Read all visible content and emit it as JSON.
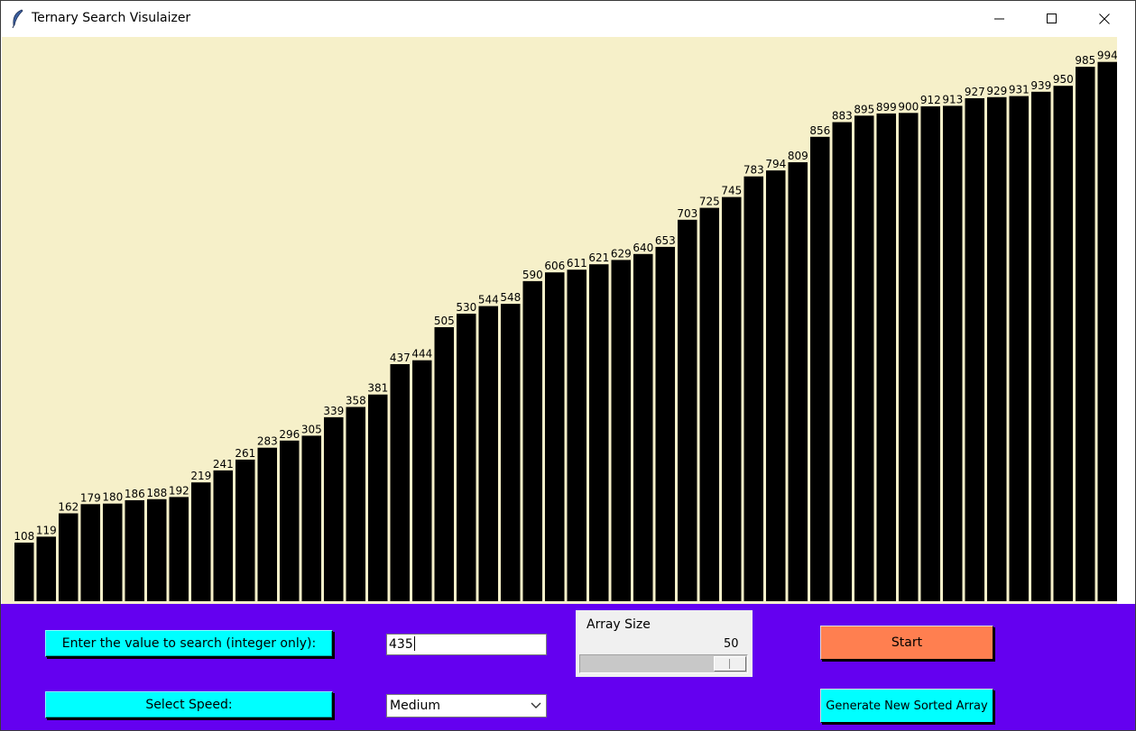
{
  "window": {
    "title": "Ternary Search Visulaizer"
  },
  "chart_data": {
    "type": "bar",
    "values": [
      108,
      119,
      162,
      179,
      180,
      186,
      188,
      192,
      219,
      241,
      261,
      283,
      296,
      305,
      339,
      358,
      381,
      437,
      444,
      505,
      530,
      544,
      548,
      590,
      606,
      611,
      621,
      629,
      640,
      653,
      703,
      725,
      745,
      783,
      794,
      809,
      856,
      883,
      895,
      899,
      900,
      912,
      913,
      927,
      929,
      931,
      939,
      950,
      985,
      994
    ],
    "ylim": [
      0,
      1040
    ],
    "bar_color": "#000000",
    "background": "#f6f0c9",
    "data_labels": true
  },
  "controls": {
    "search_label": "Enter the value to search (integer only):",
    "search_value": "435",
    "speed_label": "Select Speed:",
    "speed_selected": "Medium",
    "array_size_label": "Array Size",
    "array_size_value": "50",
    "array_size_min": 3,
    "array_size_max": 50,
    "start_label": "Start",
    "generate_label": "Generate New Sorted Array",
    "panel_color": "#6400f0",
    "cyan_color": "#00ffff",
    "start_color": "#ff7f50"
  },
  "icons": {
    "app": "feather-icon",
    "minimize": "minimize-icon",
    "maximize": "maximize-icon",
    "close": "close-icon",
    "dropdown": "chevron-down-icon"
  }
}
